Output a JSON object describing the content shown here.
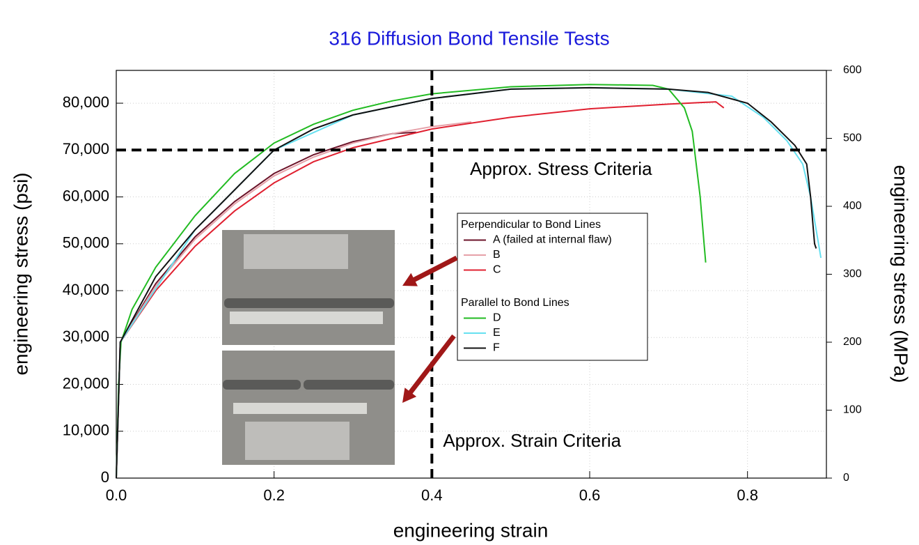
{
  "chart_data": {
    "type": "line",
    "title": "316 Diffusion Bond Tensile Tests",
    "x_label": "engineering strain",
    "y_label": "engineering stress (psi)",
    "y2_label": "engineering stress (MPa)",
    "xlim": [
      0,
      0.9
    ],
    "xticks": [
      {
        "value": 0,
        "label": "0.0"
      },
      0.2,
      0.4,
      0.6,
      0.8
    ],
    "ylim": [
      0,
      87000
    ],
    "yticks": [
      0,
      {
        "value": 10000,
        "label": "10,000"
      },
      {
        "value": 20000,
        "label": "20,000"
      },
      {
        "value": 30000,
        "label": "30,000"
      },
      {
        "value": 40000,
        "label": "40,000"
      },
      {
        "value": 50000,
        "label": "50,000"
      },
      {
        "value": 60000,
        "label": "60,000"
      },
      {
        "value": 70000,
        "label": "70,000"
      },
      {
        "value": 80000,
        "label": "80,000"
      }
    ],
    "y2lim": [
      0,
      600
    ],
    "y2ticks": [
      0,
      100,
      200,
      300,
      400,
      500,
      600
    ],
    "grid": true,
    "reference_lines": [
      {
        "axis": "y",
        "value": 70000,
        "label": "Approx. Stress Criteria"
      },
      {
        "axis": "x",
        "value": 0.4,
        "label": "Approx. Strain Criteria"
      }
    ],
    "series": [
      {
        "name": "A (failed at internal flaw)",
        "group": "Perpendicular to Bond Lines",
        "color": "#6b1228",
        "x": [
          0,
          0.005,
          0.05,
          0.1,
          0.15,
          0.2,
          0.25,
          0.3,
          0.35,
          0.38
        ],
        "values": [
          0,
          29000,
          41500,
          51500,
          59000,
          65000,
          69000,
          71800,
          73500,
          73800
        ]
      },
      {
        "name": "B",
        "group": "Perpendicular to Bond Lines",
        "color": "#e6a0a8",
        "x": [
          0,
          0.005,
          0.05,
          0.1,
          0.15,
          0.2,
          0.25,
          0.3,
          0.35,
          0.4,
          0.45
        ],
        "values": [
          0,
          29000,
          41000,
          51000,
          58500,
          64500,
          68500,
          71500,
          73500,
          75000,
          76000
        ]
      },
      {
        "name": "C",
        "group": "Perpendicular to Bond Lines",
        "color": "#e02030",
        "x": [
          0,
          0.005,
          0.05,
          0.1,
          0.15,
          0.2,
          0.25,
          0.3,
          0.35,
          0.4,
          0.5,
          0.6,
          0.7,
          0.76,
          0.77
        ],
        "values": [
          0,
          29000,
          40000,
          49500,
          57000,
          63000,
          67500,
          70500,
          72500,
          74500,
          77000,
          78800,
          79800,
          80300,
          79000
        ]
      },
      {
        "name": "D",
        "group": "Parallel to Bond Lines",
        "color": "#22bb22",
        "x": [
          0,
          0.003,
          0.006,
          0.02,
          0.05,
          0.1,
          0.15,
          0.2,
          0.25,
          0.3,
          0.35,
          0.4,
          0.5,
          0.6,
          0.68,
          0.7,
          0.72,
          0.73,
          0.74,
          0.745,
          0.747
        ],
        "values": [
          0,
          20000,
          29000,
          36000,
          45000,
          56000,
          65000,
          71500,
          75500,
          78500,
          80500,
          82000,
          83500,
          84000,
          83800,
          83000,
          79000,
          74000,
          60000,
          50000,
          46000
        ]
      },
      {
        "name": "E",
        "group": "Parallel to Bond Lines",
        "color": "#66e0f0",
        "x": [
          0,
          0.005,
          0.1,
          0.2,
          0.3,
          0.4,
          0.5,
          0.6,
          0.7,
          0.78,
          0.82,
          0.85,
          0.87,
          0.88,
          0.89,
          0.893
        ],
        "values": [
          0,
          29000,
          53000,
          70000,
          77500,
          81000,
          83000,
          83300,
          83000,
          81500,
          77000,
          72000,
          67000,
          60000,
          50000,
          47000
        ]
      },
      {
        "name": "F",
        "group": "Parallel to Bond Lines",
        "color": "#111111",
        "x": [
          0,
          0.005,
          0.05,
          0.1,
          0.15,
          0.2,
          0.25,
          0.3,
          0.4,
          0.5,
          0.6,
          0.7,
          0.75,
          0.8,
          0.83,
          0.86,
          0.875,
          0.88,
          0.885,
          0.887
        ],
        "values": [
          0,
          29000,
          43000,
          53000,
          61500,
          70000,
          74500,
          77500,
          81000,
          83000,
          83300,
          83000,
          82300,
          80000,
          76000,
          71000,
          67000,
          60000,
          50000,
          49000
        ]
      }
    ]
  }
}
